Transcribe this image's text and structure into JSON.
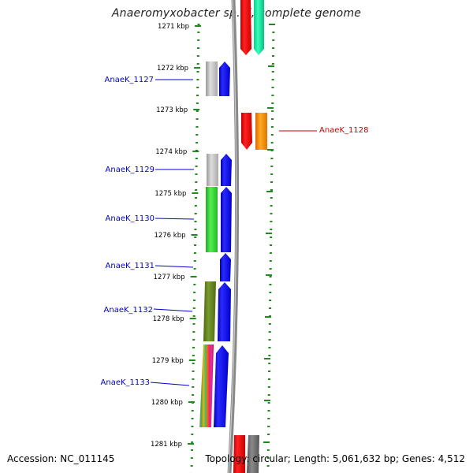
{
  "header": {
    "title": "Anaeromyxobacter sp. K, complete genome"
  },
  "footer": {
    "accession": "Accession: NC_011145",
    "topology": "Topology: circular; Length: 5,061,632 bp; Genes: 4,512"
  },
  "scale": {
    "unit": "kbp",
    "ticks": [
      1271,
      1272,
      1273,
      1274,
      1275,
      1276,
      1277,
      1278,
      1279,
      1280,
      1281
    ],
    "tick_labels": [
      "1271 kbp",
      "1272 kbp",
      "1273 kbp",
      "1274 kbp",
      "1275 kbp",
      "1276 kbp",
      "1277 kbp",
      "1278 kbp",
      "1279 kbp",
      "1280 kbp",
      "1281 kbp"
    ]
  },
  "colors": {
    "left_label": "#0000cc",
    "right_label": "#cc0000",
    "forward_gene": "#0000ee",
    "reverse_gene": "#ee0000",
    "scale_dots": "#228822",
    "backbone": "#8a8a8a"
  },
  "genes": [
    {
      "name": "AnaeK_1127",
      "side": "left"
    },
    {
      "name": "AnaeK_1128",
      "side": "right"
    },
    {
      "name": "AnaeK_1129",
      "side": "left"
    },
    {
      "name": "AnaeK_1130",
      "side": "left"
    },
    {
      "name": "AnaeK_1131",
      "side": "left"
    },
    {
      "name": "AnaeK_1132",
      "side": "left"
    },
    {
      "name": "AnaeK_1133",
      "side": "left"
    }
  ]
}
